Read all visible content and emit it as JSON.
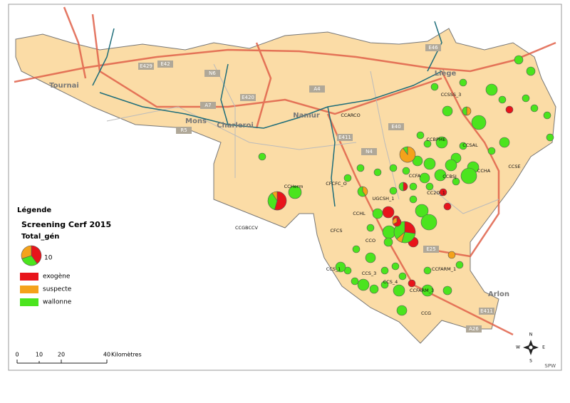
{
  "legend": {
    "heading": "Légende",
    "title": "Screening Cerf 2015",
    "field": "Total_gén",
    "size_label": "10",
    "classes": [
      {
        "label": "exogène",
        "color": "#e8141b"
      },
      {
        "label": "suspecte",
        "color": "#f4a21b"
      },
      {
        "label": "wallonne",
        "color": "#4be41e"
      }
    ]
  },
  "scale_bar": {
    "ticks": [
      "0",
      "10",
      "20",
      "40"
    ],
    "unit": "Kilomètres"
  },
  "north_arrow": {
    "n": "N",
    "e": "E",
    "s": "S",
    "w": "W"
  },
  "credit": "SPW",
  "cities": [
    "Tournai",
    "Mons",
    "Charleroi",
    "Namur",
    "Liège",
    "Arlon"
  ],
  "roads": [
    "E429",
    "E42",
    "N6",
    "A7",
    "R5",
    "E420",
    "A4",
    "E411",
    "E40",
    "N4",
    "E25",
    "E46",
    "A26",
    "E411"
  ],
  "zones": [
    "CCSSS_3",
    "CCARCO",
    "CCBPME",
    "CCSAL",
    "CCSE",
    "CCBSJ",
    "CCHA",
    "CCFA",
    "CC2O_1",
    "UGCSH_1",
    "CCHerm",
    "CFCFC_O",
    "CCHL",
    "CFCS",
    "CCO",
    "CCGBCCV",
    "CCFARM_1",
    "CCS_1",
    "CCS_3",
    "CCS_4",
    "CCFARM_3",
    "CCG"
  ]
}
